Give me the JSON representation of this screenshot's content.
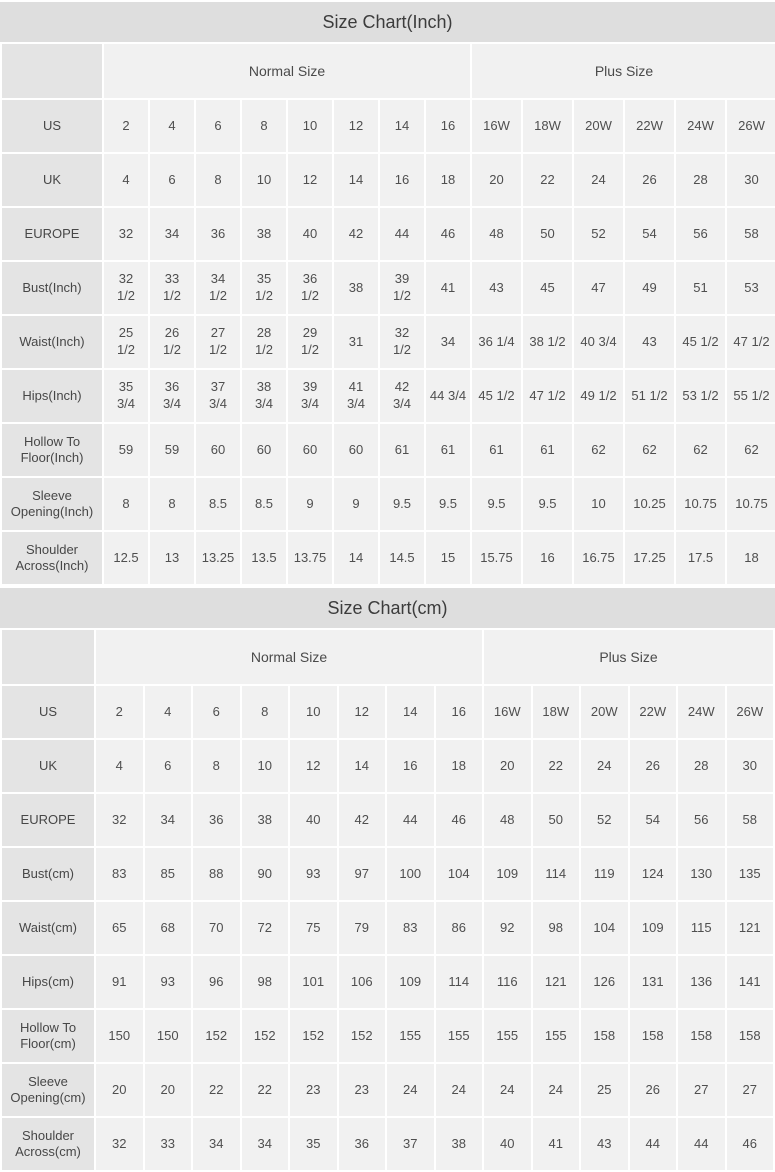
{
  "colors": {
    "title_bg": "#dedede",
    "label_cell_bg": "#e4e4e4",
    "data_cell_bg": "#f1f1f1",
    "text": "#4f4f4f",
    "gap": "#ffffff"
  },
  "chart_data": [
    {
      "type": "table",
      "title": "Size Chart(Inch)",
      "column_groups": [
        {
          "label": "Normal Size",
          "span": 8
        },
        {
          "label": "Plus Size",
          "span": 6
        }
      ],
      "rows": [
        {
          "label": "US",
          "values": [
            "2",
            "4",
            "6",
            "8",
            "10",
            "12",
            "14",
            "16",
            "16W",
            "18W",
            "20W",
            "22W",
            "24W",
            "26W"
          ]
        },
        {
          "label": "UK",
          "values": [
            "4",
            "6",
            "8",
            "10",
            "12",
            "14",
            "16",
            "18",
            "20",
            "22",
            "24",
            "26",
            "28",
            "30"
          ]
        },
        {
          "label": "EUROPE",
          "values": [
            "32",
            "34",
            "36",
            "38",
            "40",
            "42",
            "44",
            "46",
            "48",
            "50",
            "52",
            "54",
            "56",
            "58"
          ]
        },
        {
          "label": "Bust(Inch)",
          "values": [
            "32\n1/2",
            "33\n1/2",
            "34\n1/2",
            "35\n1/2",
            "36\n1/2",
            "38",
            "39\n1/2",
            "41",
            "43",
            "45",
            "47",
            "49",
            "51",
            "53"
          ]
        },
        {
          "label": "Waist(Inch)",
          "values": [
            "25\n1/2",
            "26\n1/2",
            "27\n1/2",
            "28\n1/2",
            "29\n1/2",
            "31",
            "32\n1/2",
            "34",
            "36 1/4",
            "38 1/2",
            "40 3/4",
            "43",
            "45 1/2",
            "47 1/2"
          ]
        },
        {
          "label": "Hips(Inch)",
          "values": [
            "35\n3/4",
            "36\n3/4",
            "37\n3/4",
            "38\n3/4",
            "39\n3/4",
            "41\n3/4",
            "42\n3/4",
            "44 3/4",
            "45 1/2",
            "47 1/2",
            "49 1/2",
            "51 1/2",
            "53 1/2",
            "55 1/2"
          ]
        },
        {
          "label": "Hollow To Floor(Inch)",
          "values": [
            "59",
            "59",
            "60",
            "60",
            "60",
            "60",
            "61",
            "61",
            "61",
            "61",
            "62",
            "62",
            "62",
            "62"
          ]
        },
        {
          "label": "Sleeve Opening(Inch)",
          "values": [
            "8",
            "8",
            "8.5",
            "8.5",
            "9",
            "9",
            "9.5",
            "9.5",
            "9.5",
            "9.5",
            "10",
            "10.25",
            "10.75",
            "10.75"
          ]
        },
        {
          "label": "Shoulder Across(Inch)",
          "values": [
            "12.5",
            "13",
            "13.25",
            "13.5",
            "13.75",
            "14",
            "14.5",
            "15",
            "15.75",
            "16",
            "16.75",
            "17.25",
            "17.5",
            "18"
          ]
        }
      ]
    },
    {
      "type": "table",
      "title": "Size Chart(cm)",
      "column_groups": [
        {
          "label": "Normal Size",
          "span": 8
        },
        {
          "label": "Plus Size",
          "span": 6
        }
      ],
      "rows": [
        {
          "label": "US",
          "values": [
            "2",
            "4",
            "6",
            "8",
            "10",
            "12",
            "14",
            "16",
            "16W",
            "18W",
            "20W",
            "22W",
            "24W",
            "26W"
          ]
        },
        {
          "label": "UK",
          "values": [
            "4",
            "6",
            "8",
            "10",
            "12",
            "14",
            "16",
            "18",
            "20",
            "22",
            "24",
            "26",
            "28",
            "30"
          ]
        },
        {
          "label": "EUROPE",
          "values": [
            "32",
            "34",
            "36",
            "38",
            "40",
            "42",
            "44",
            "46",
            "48",
            "50",
            "52",
            "54",
            "56",
            "58"
          ]
        },
        {
          "label": "Bust(cm)",
          "values": [
            "83",
            "85",
            "88",
            "90",
            "93",
            "97",
            "100",
            "104",
            "109",
            "114",
            "119",
            "124",
            "130",
            "135"
          ]
        },
        {
          "label": "Waist(cm)",
          "values": [
            "65",
            "68",
            "70",
            "72",
            "75",
            "79",
            "83",
            "86",
            "92",
            "98",
            "104",
            "109",
            "115",
            "121"
          ]
        },
        {
          "label": "Hips(cm)",
          "values": [
            "91",
            "93",
            "96",
            "98",
            "101",
            "106",
            "109",
            "114",
            "116",
            "121",
            "126",
            "131",
            "136",
            "141"
          ]
        },
        {
          "label": "Hollow To Floor(cm)",
          "values": [
            "150",
            "150",
            "152",
            "152",
            "152",
            "152",
            "155",
            "155",
            "155",
            "155",
            "158",
            "158",
            "158",
            "158"
          ]
        },
        {
          "label": "Sleeve Opening(cm)",
          "values": [
            "20",
            "20",
            "22",
            "22",
            "23",
            "23",
            "24",
            "24",
            "24",
            "24",
            "25",
            "26",
            "27",
            "27"
          ]
        },
        {
          "label": "Shoulder Across(cm)",
          "values": [
            "32",
            "33",
            "34",
            "34",
            "35",
            "36",
            "37",
            "38",
            "40",
            "41",
            "43",
            "44",
            "44",
            "46"
          ]
        }
      ]
    }
  ]
}
